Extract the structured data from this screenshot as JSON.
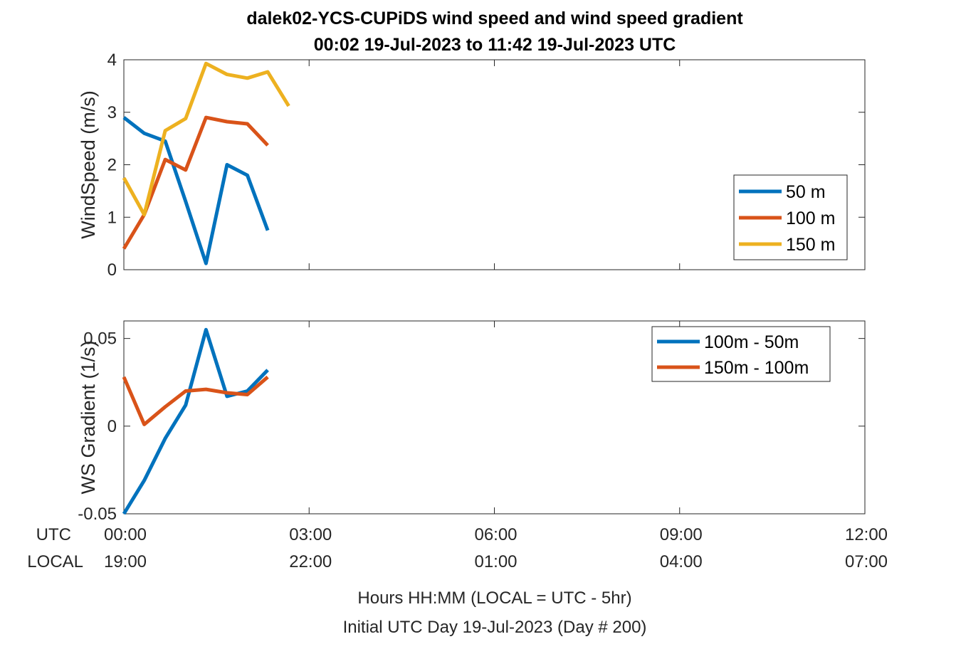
{
  "title_line1": "dalek02-YCS-CUPiDS  wind speed and wind speed gradient",
  "title_line2": "00:02 19-Jul-2023 to 11:42 19-Jul-2023  UTC",
  "row_labels": {
    "utc": "UTC",
    "local": "LOCAL"
  },
  "xlabel_line1": "Hours HH:MM  (LOCAL = UTC - 5hr)",
  "xlabel_line2": "Initial UTC Day 19-Jul-2023 (Day # 200)",
  "chart_data": [
    {
      "type": "line",
      "ylabel": "WindSpeed (m/s)",
      "xlim": [
        0,
        12
      ],
      "ylim": [
        0,
        4
      ],
      "yticks": [
        0,
        1,
        2,
        3,
        4
      ],
      "ytick_labels": [
        "0",
        "1",
        "2",
        "3",
        "4"
      ],
      "xticks": [
        0,
        3,
        6,
        9,
        12
      ],
      "xtick_labels_utc": [
        "00:00",
        "03:00",
        "06:00",
        "09:00",
        "12:00"
      ],
      "xtick_labels_local": [
        "19:00",
        "22:00",
        "01:00",
        "04:00",
        "07:00"
      ],
      "legend_location": "right",
      "grid": false,
      "series": [
        {
          "name": "50 m",
          "color": "#0072BD",
          "x": [
            0.0,
            0.33,
            0.67,
            1.0,
            1.33,
            1.67,
            2.0,
            2.33
          ],
          "y": [
            2.9,
            2.6,
            2.45,
            1.3,
            0.12,
            2.0,
            1.8,
            0.75
          ]
        },
        {
          "name": "100 m",
          "color": "#D95319",
          "x": [
            0.0,
            0.33,
            0.67,
            1.0,
            1.33,
            1.67,
            2.0,
            2.33
          ],
          "y": [
            0.4,
            1.05,
            2.1,
            1.9,
            2.9,
            2.82,
            2.78,
            2.37
          ]
        },
        {
          "name": "150 m",
          "color": "#EDB120",
          "x": [
            0.0,
            0.33,
            0.67,
            1.0,
            1.33,
            1.67,
            2.0,
            2.33,
            2.67
          ],
          "y": [
            1.75,
            1.05,
            2.65,
            2.88,
            3.93,
            3.72,
            3.65,
            3.77,
            3.12
          ]
        }
      ]
    },
    {
      "type": "line",
      "ylabel": "WS Gradient (1/s)",
      "xlim": [
        0,
        12
      ],
      "ylim": [
        -0.05,
        0.06
      ],
      "yticks": [
        -0.05,
        0,
        0.05
      ],
      "ytick_labels": [
        "-0.05",
        "0",
        "0.05"
      ],
      "xticks": [
        0,
        3,
        6,
        9,
        12
      ],
      "legend_location": "top-right",
      "grid": false,
      "series": [
        {
          "name": "100m - 50m",
          "color": "#0072BD",
          "x": [
            0.0,
            0.33,
            0.67,
            1.0,
            1.33,
            1.67,
            2.0,
            2.33
          ],
          "y": [
            -0.05,
            -0.031,
            -0.007,
            0.012,
            0.055,
            0.017,
            0.02,
            0.032
          ]
        },
        {
          "name": "150m - 100m",
          "color": "#D95319",
          "x": [
            0.0,
            0.33,
            0.67,
            1.0,
            1.33,
            1.67,
            2.0,
            2.33
          ],
          "y": [
            0.028,
            0.001,
            0.011,
            0.02,
            0.021,
            0.019,
            0.018,
            0.028
          ]
        }
      ]
    }
  ]
}
